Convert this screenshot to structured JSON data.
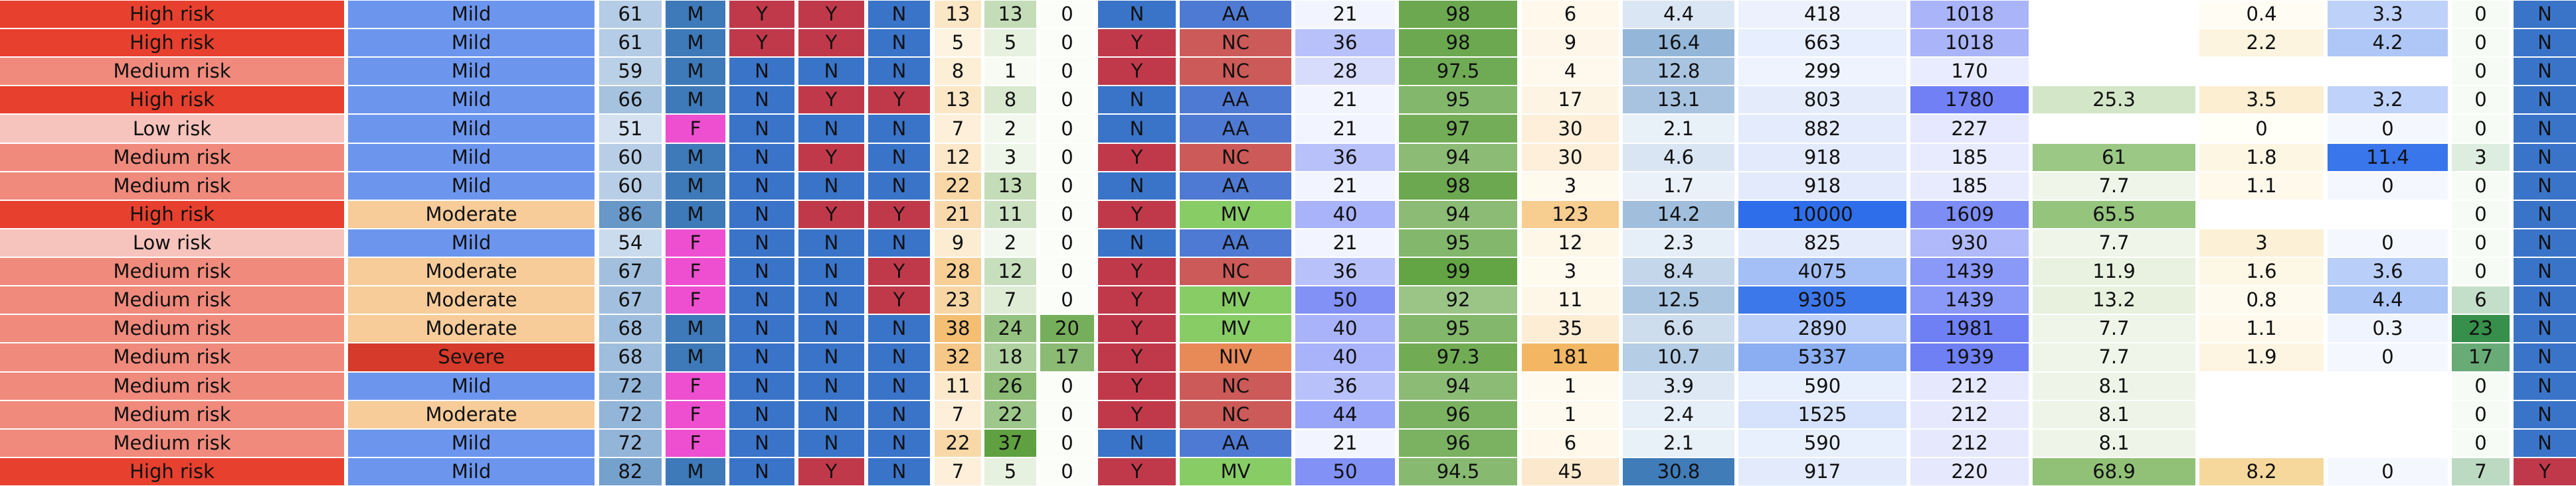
{
  "chart_data": {
    "type": "table",
    "rows": [
      [
        "High risk",
        "Mild",
        "61",
        "M",
        "Y",
        "Y",
        "N",
        "13",
        "13",
        "0",
        "N",
        "AA",
        "21",
        "98",
        "6",
        "4.4",
        "418",
        "1018",
        "",
        "0.4",
        "3.3",
        "0",
        "N"
      ],
      [
        "High risk",
        "Mild",
        "61",
        "M",
        "Y",
        "Y",
        "N",
        "5",
        "5",
        "0",
        "Y",
        "NC",
        "36",
        "98",
        "9",
        "16.4",
        "663",
        "1018",
        "",
        "2.2",
        "4.2",
        "0",
        "N"
      ],
      [
        "Medium risk",
        "Mild",
        "59",
        "M",
        "N",
        "N",
        "N",
        "8",
        "1",
        "0",
        "Y",
        "NC",
        "28",
        "97.5",
        "4",
        "12.8",
        "299",
        "170",
        "",
        "",
        "",
        "0",
        "N"
      ],
      [
        "High risk",
        "Mild",
        "66",
        "M",
        "N",
        "Y",
        "Y",
        "13",
        "8",
        "0",
        "N",
        "AA",
        "21",
        "95",
        "17",
        "13.1",
        "803",
        "1780",
        "25.3",
        "3.5",
        "3.2",
        "0",
        "N"
      ],
      [
        "Low risk",
        "Mild",
        "51",
        "F",
        "N",
        "N",
        "N",
        "7",
        "2",
        "0",
        "N",
        "AA",
        "21",
        "97",
        "30",
        "2.1",
        "882",
        "227",
        "",
        "0",
        "0",
        "0",
        "N"
      ],
      [
        "Medium risk",
        "Mild",
        "60",
        "M",
        "N",
        "Y",
        "N",
        "12",
        "3",
        "0",
        "Y",
        "NC",
        "36",
        "94",
        "30",
        "4.6",
        "918",
        "185",
        "61",
        "1.8",
        "11.4",
        "3",
        "N"
      ],
      [
        "Medium risk",
        "Mild",
        "60",
        "M",
        "N",
        "N",
        "N",
        "22",
        "13",
        "0",
        "N",
        "AA",
        "21",
        "98",
        "3",
        "1.7",
        "918",
        "185",
        "7.7",
        "1.1",
        "0",
        "0",
        "N"
      ],
      [
        "High risk",
        "Moderate",
        "86",
        "M",
        "N",
        "Y",
        "Y",
        "21",
        "11",
        "0",
        "Y",
        "MV",
        "40",
        "94",
        "123",
        "14.2",
        "10000",
        "1609",
        "65.5",
        "",
        "",
        "0",
        "N"
      ],
      [
        "Low risk",
        "Mild",
        "54",
        "F",
        "N",
        "N",
        "N",
        "9",
        "2",
        "0",
        "N",
        "AA",
        "21",
        "95",
        "12",
        "2.3",
        "825",
        "930",
        "7.7",
        "3",
        "0",
        "0",
        "N"
      ],
      [
        "Medium risk",
        "Moderate",
        "67",
        "F",
        "N",
        "N",
        "Y",
        "28",
        "12",
        "0",
        "Y",
        "NC",
        "36",
        "99",
        "3",
        "8.4",
        "4075",
        "1439",
        "11.9",
        "1.6",
        "3.6",
        "0",
        "N"
      ],
      [
        "Medium risk",
        "Moderate",
        "67",
        "F",
        "N",
        "N",
        "Y",
        "23",
        "7",
        "0",
        "Y",
        "MV",
        "50",
        "92",
        "11",
        "12.5",
        "9305",
        "1439",
        "13.2",
        "0.8",
        "4.4",
        "6",
        "N"
      ],
      [
        "Medium risk",
        "Moderate",
        "68",
        "M",
        "N",
        "N",
        "N",
        "38",
        "24",
        "20",
        "Y",
        "MV",
        "40",
        "95",
        "35",
        "6.6",
        "2890",
        "1981",
        "7.7",
        "1.1",
        "0.3",
        "23",
        "N"
      ],
      [
        "Medium risk",
        "Severe",
        "68",
        "M",
        "N",
        "N",
        "N",
        "32",
        "18",
        "17",
        "Y",
        "NIV",
        "40",
        "97.3",
        "181",
        "10.7",
        "5337",
        "1939",
        "7.7",
        "1.9",
        "0",
        "17",
        "N"
      ],
      [
        "Medium risk",
        "Mild",
        "72",
        "F",
        "N",
        "N",
        "N",
        "11",
        "26",
        "0",
        "Y",
        "NC",
        "36",
        "94",
        "1",
        "3.9",
        "590",
        "212",
        "8.1",
        "",
        "",
        "0",
        "N"
      ],
      [
        "Medium risk",
        "Moderate",
        "72",
        "F",
        "N",
        "N",
        "N",
        "7",
        "22",
        "0",
        "Y",
        "NC",
        "44",
        "96",
        "1",
        "2.4",
        "1525",
        "212",
        "8.1",
        "",
        "",
        "0",
        "N"
      ],
      [
        "Medium risk",
        "Mild",
        "72",
        "F",
        "N",
        "N",
        "N",
        "22",
        "37",
        "0",
        "N",
        "AA",
        "21",
        "96",
        "6",
        "2.1",
        "590",
        "212",
        "8.1",
        "",
        "",
        "0",
        "N"
      ],
      [
        "High risk",
        "Mild",
        "82",
        "M",
        "N",
        "Y",
        "N",
        "7",
        "5",
        "0",
        "Y",
        "MV",
        "50",
        "94.5",
        "45",
        "30.8",
        "917",
        "220",
        "68.9",
        "8.2",
        "0",
        "7",
        "Y"
      ]
    ],
    "colors": {
      "risk": {
        "High risk": "#e8402e",
        "Medium risk": "#f08a7c",
        "Low risk": "#f7c3bd"
      },
      "severity": {
        "Mild": "#6c96ee",
        "Moderate": "#f7cc99",
        "Severe": "#d63a2a"
      },
      "sex": {
        "M": "#3e79b9",
        "F": "#ee4fd0"
      },
      "yn_red_blue": {
        "Y": "#c0394b",
        "N": "#3a74c9"
      },
      "yn_blue_red": {
        "Y": "#c0394b",
        "N": "#3a74c9"
      },
      "support": {
        "AA": "#4f7ad3",
        "NC": "#cc5a58",
        "MV": "#88cc66",
        "NIV": "#e88a58"
      }
    }
  }
}
